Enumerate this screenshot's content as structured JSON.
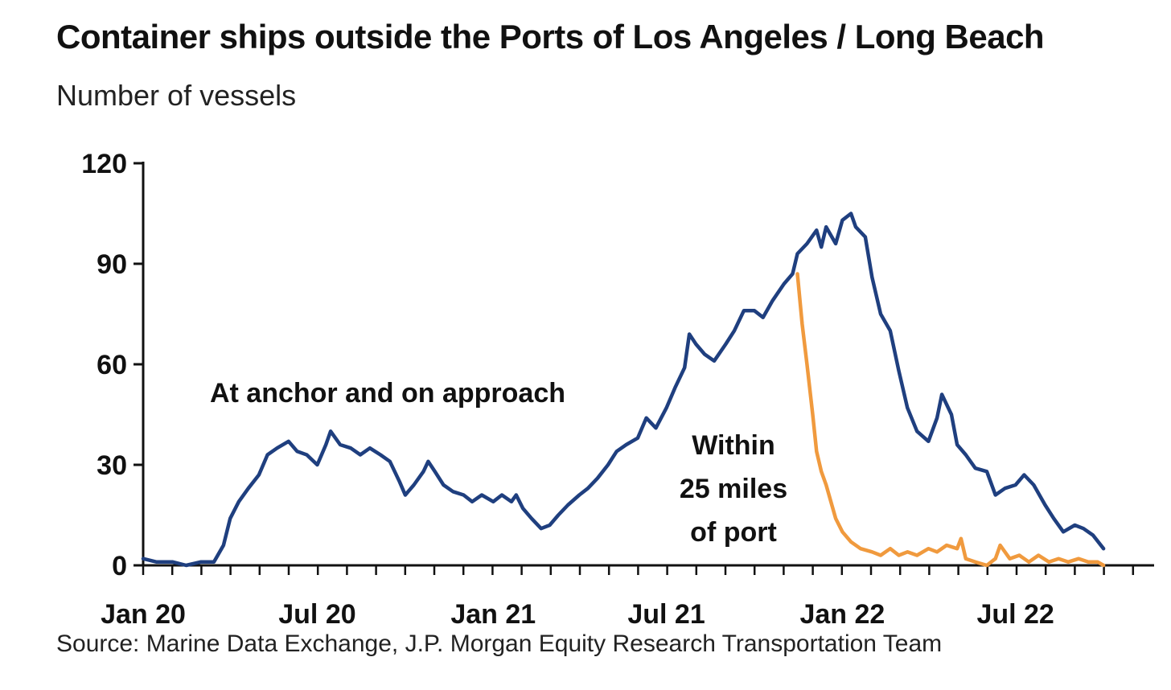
{
  "chart_data": {
    "type": "line",
    "title": "Container ships outside the Ports of Los Angeles / Long Beach",
    "subtitle": "Number of vessels",
    "source": "Source: Marine Data Exchange, J.P. Morgan Equity Research Transportation Team",
    "ylim": [
      0,
      120
    ],
    "yticks": [
      "0",
      "30",
      "60",
      "90",
      "120"
    ],
    "ytick_values": [
      0,
      30,
      60,
      90,
      120
    ],
    "xlim": [
      "2020-01",
      "2022-11"
    ],
    "xticks": [
      {
        "label": "Jan 20",
        "date": "2020-01"
      },
      {
        "label": "Jul 20",
        "date": "2020-07"
      },
      {
        "label": "Jan 21",
        "date": "2021-01"
      },
      {
        "label": "Jul 21",
        "date": "2021-07"
      },
      {
        "label": "Jan 22",
        "date": "2022-01"
      },
      {
        "label": "Jul 22",
        "date": "2022-07"
      }
    ],
    "grid": false,
    "legend": "none",
    "annotations": [
      {
        "lines": [
          "At anchor and on approach"
        ],
        "series": 0
      },
      {
        "lines": [
          "Within",
          "25 miles",
          "of port"
        ],
        "series": 1
      }
    ],
    "series": [
      {
        "color": "#1f3f7f",
        "points": [
          [
            "2020-01-01",
            2
          ],
          [
            "2020-01-15",
            1
          ],
          [
            "2020-02-01",
            1
          ],
          [
            "2020-02-15",
            0
          ],
          [
            "2020-03-01",
            1
          ],
          [
            "2020-03-15",
            1
          ],
          [
            "2020-03-25",
            6
          ],
          [
            "2020-04-01",
            14
          ],
          [
            "2020-04-10",
            19
          ],
          [
            "2020-04-20",
            23
          ],
          [
            "2020-05-01",
            27
          ],
          [
            "2020-05-10",
            33
          ],
          [
            "2020-05-20",
            35
          ],
          [
            "2020-06-01",
            37
          ],
          [
            "2020-06-10",
            34
          ],
          [
            "2020-06-20",
            33
          ],
          [
            "2020-07-01",
            30
          ],
          [
            "2020-07-10",
            36
          ],
          [
            "2020-07-15",
            40
          ],
          [
            "2020-07-25",
            36
          ],
          [
            "2020-08-05",
            35
          ],
          [
            "2020-08-15",
            33
          ],
          [
            "2020-08-25",
            35
          ],
          [
            "2020-09-05",
            33
          ],
          [
            "2020-09-15",
            31
          ],
          [
            "2020-09-25",
            25
          ],
          [
            "2020-10-01",
            21
          ],
          [
            "2020-10-10",
            24
          ],
          [
            "2020-10-20",
            28
          ],
          [
            "2020-10-25",
            31
          ],
          [
            "2020-11-01",
            28
          ],
          [
            "2020-11-10",
            24
          ],
          [
            "2020-11-20",
            22
          ],
          [
            "2020-12-01",
            21
          ],
          [
            "2020-12-10",
            19
          ],
          [
            "2020-12-20",
            21
          ],
          [
            "2021-01-01",
            19
          ],
          [
            "2021-01-10",
            21
          ],
          [
            "2021-01-20",
            19
          ],
          [
            "2021-01-25",
            21
          ],
          [
            "2021-02-01",
            17
          ],
          [
            "2021-02-10",
            14
          ],
          [
            "2021-02-20",
            11
          ],
          [
            "2021-03-01",
            12
          ],
          [
            "2021-03-10",
            15
          ],
          [
            "2021-03-20",
            18
          ],
          [
            "2021-04-01",
            21
          ],
          [
            "2021-04-10",
            23
          ],
          [
            "2021-04-20",
            26
          ],
          [
            "2021-05-01",
            30
          ],
          [
            "2021-05-10",
            34
          ],
          [
            "2021-05-20",
            36
          ],
          [
            "2021-06-01",
            38
          ],
          [
            "2021-06-10",
            44
          ],
          [
            "2021-06-20",
            41
          ],
          [
            "2021-07-01",
            47
          ],
          [
            "2021-07-10",
            53
          ],
          [
            "2021-07-20",
            59
          ],
          [
            "2021-07-25",
            69
          ],
          [
            "2021-08-01",
            66
          ],
          [
            "2021-08-10",
            63
          ],
          [
            "2021-08-20",
            61
          ],
          [
            "2021-09-01",
            66
          ],
          [
            "2021-09-10",
            70
          ],
          [
            "2021-09-20",
            76
          ],
          [
            "2021-10-01",
            76
          ],
          [
            "2021-10-10",
            74
          ],
          [
            "2021-10-20",
            79
          ],
          [
            "2021-11-01",
            84
          ],
          [
            "2021-11-10",
            87
          ],
          [
            "2021-11-15",
            93
          ],
          [
            "2021-11-25",
            96
          ],
          [
            "2021-12-05",
            100
          ],
          [
            "2021-12-10",
            95
          ],
          [
            "2021-12-15",
            101
          ],
          [
            "2021-12-25",
            96
          ],
          [
            "2022-01-01",
            103
          ],
          [
            "2022-01-10",
            105
          ],
          [
            "2022-01-15",
            101
          ],
          [
            "2022-01-25",
            98
          ],
          [
            "2022-02-01",
            86
          ],
          [
            "2022-02-10",
            75
          ],
          [
            "2022-02-20",
            70
          ],
          [
            "2022-03-01",
            58
          ],
          [
            "2022-03-10",
            47
          ],
          [
            "2022-03-20",
            40
          ],
          [
            "2022-04-01",
            37
          ],
          [
            "2022-04-10",
            44
          ],
          [
            "2022-04-15",
            51
          ],
          [
            "2022-04-25",
            45
          ],
          [
            "2022-05-01",
            36
          ],
          [
            "2022-05-10",
            33
          ],
          [
            "2022-05-20",
            29
          ],
          [
            "2022-06-01",
            28
          ],
          [
            "2022-06-10",
            21
          ],
          [
            "2022-06-20",
            23
          ],
          [
            "2022-07-01",
            24
          ],
          [
            "2022-07-10",
            27
          ],
          [
            "2022-07-20",
            24
          ],
          [
            "2022-08-01",
            18
          ],
          [
            "2022-08-10",
            14
          ],
          [
            "2022-08-20",
            10
          ],
          [
            "2022-09-01",
            12
          ],
          [
            "2022-09-10",
            11
          ],
          [
            "2022-09-20",
            9
          ],
          [
            "2022-10-01",
            5
          ]
        ]
      },
      {
        "color": "#f09a3e",
        "points": [
          [
            "2021-11-15",
            87
          ],
          [
            "2021-11-20",
            72
          ],
          [
            "2021-11-25",
            60
          ],
          [
            "2021-12-01",
            45
          ],
          [
            "2021-12-05",
            34
          ],
          [
            "2021-12-10",
            28
          ],
          [
            "2021-12-15",
            24
          ],
          [
            "2021-12-20",
            19
          ],
          [
            "2021-12-25",
            14
          ],
          [
            "2022-01-01",
            10
          ],
          [
            "2022-01-10",
            7
          ],
          [
            "2022-01-20",
            5
          ],
          [
            "2022-02-01",
            4
          ],
          [
            "2022-02-10",
            3
          ],
          [
            "2022-02-20",
            5
          ],
          [
            "2022-03-01",
            3
          ],
          [
            "2022-03-10",
            4
          ],
          [
            "2022-03-20",
            3
          ],
          [
            "2022-04-01",
            5
          ],
          [
            "2022-04-10",
            4
          ],
          [
            "2022-04-20",
            6
          ],
          [
            "2022-05-01",
            5
          ],
          [
            "2022-05-05",
            8
          ],
          [
            "2022-05-10",
            2
          ],
          [
            "2022-05-20",
            1
          ],
          [
            "2022-06-01",
            0
          ],
          [
            "2022-06-10",
            2
          ],
          [
            "2022-06-15",
            6
          ],
          [
            "2022-06-25",
            2
          ],
          [
            "2022-07-05",
            3
          ],
          [
            "2022-07-15",
            1
          ],
          [
            "2022-07-25",
            3
          ],
          [
            "2022-08-05",
            1
          ],
          [
            "2022-08-15",
            2
          ],
          [
            "2022-08-25",
            1
          ],
          [
            "2022-09-05",
            2
          ],
          [
            "2022-09-15",
            1
          ],
          [
            "2022-09-25",
            1
          ],
          [
            "2022-10-01",
            0
          ]
        ]
      }
    ]
  }
}
